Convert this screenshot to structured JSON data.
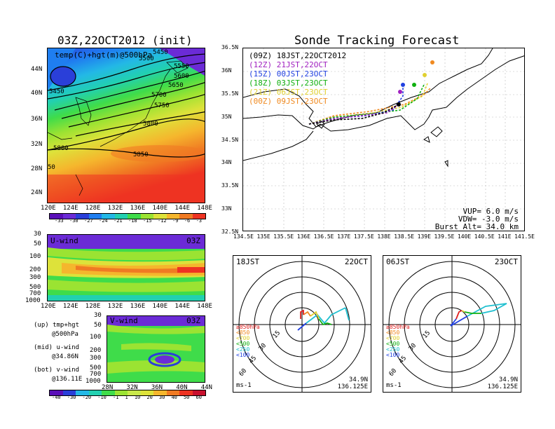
{
  "left_title": "03Z,22OCT2012 (init)",
  "right_title": "Sonde Tracking Forecast",
  "map500": {
    "overlay_label": "temp(C)+hgt(m)@500hPa",
    "lat_ticks": [
      "44N",
      "40N",
      "36N",
      "32N",
      "28N",
      "24N"
    ],
    "lon_ticks": [
      "120E",
      "124E",
      "128E",
      "132E",
      "136E",
      "140E",
      "144E",
      "148E"
    ],
    "contour_labels": [
      "5450",
      "5500",
      "5550",
      "5600",
      "5650",
      "5700",
      "5750",
      "5800",
      "5850",
      "5450",
      "5800",
      "50"
    ],
    "temp_colorbar": [
      "-33",
      "-30",
      "-27",
      "-24",
      "-21",
      "-18",
      "-15",
      "-12",
      "-9",
      "-6",
      "-3"
    ],
    "temp_colors": [
      "#5a0fb8",
      "#6b2bd6",
      "#2a3fd9",
      "#1f7ef0",
      "#23b8e6",
      "#22d0b0",
      "#3fdc4a",
      "#9be332",
      "#dde23a",
      "#f5b62d",
      "#f07a23",
      "#ee3322"
    ]
  },
  "uwind": {
    "label": "U-wind",
    "time": "03Z",
    "p_ticks": [
      "30",
      "50",
      "100",
      "200",
      "300",
      "500",
      "700",
      "1000"
    ],
    "lon_ticks": [
      "120E",
      "124E",
      "128E",
      "132E",
      "136E",
      "140E",
      "144E",
      "148E"
    ]
  },
  "vwind": {
    "label": "V-wind",
    "time": "03Z",
    "p_ticks": [
      "30",
      "50",
      "100",
      "200",
      "300",
      "500",
      "700",
      "1000"
    ],
    "lat_ticks": [
      "28N",
      "32N",
      "36N",
      "40N",
      "44N"
    ]
  },
  "legend_notes": [
    {
      "a": "(up)  tmp+hgt",
      "b": "@500hPa"
    },
    {
      "a": "(mid) u-wind",
      "b": "@34.86N"
    },
    {
      "a": "(bot) v-wind",
      "b": "@136.11E"
    }
  ],
  "wind_colorbar": [
    "-40",
    "-30",
    "-20",
    "-10",
    "-1",
    "1",
    "10",
    "20",
    "30",
    "40",
    "50",
    "60"
  ],
  "wind_colors": [
    "#5a0fb8",
    "#2a3fd9",
    "#23b8e6",
    "#22d0b0",
    "#3fdc4a",
    "#9be332",
    "#c9e84a",
    "#dde23a",
    "#f5b62d",
    "#f07a23",
    "#ee3322",
    "#c8102e"
  ],
  "track": {
    "lat_ticks": [
      "36.5N",
      "36N",
      "35.5N",
      "35N",
      "34.5N",
      "34N",
      "33.5N",
      "33N",
      "32.5N"
    ],
    "lon_ticks": [
      "134.5E",
      "135E",
      "135.5E",
      "136E",
      "136.5E",
      "137E",
      "137.5E",
      "138E",
      "138.5E",
      "139E",
      "139.5E",
      "140E",
      "140.5E",
      "141E",
      "141.5E"
    ],
    "legend": [
      {
        "text": "(09Z) 18JST,22OCT2012",
        "color": "#000000"
      },
      {
        "text": "(12Z) 21JST,22OCT",
        "color": "#a020c0"
      },
      {
        "text": "(15Z) 00JST,23OCT",
        "color": "#1f3fe0"
      },
      {
        "text": "(18Z) 03JST,23OCT",
        "color": "#10b010"
      },
      {
        "text": "(21Z) 06JST,23OCT",
        "color": "#e0d030"
      },
      {
        "text": "(00Z) 09JST,23OCT",
        "color": "#f08a20"
      }
    ],
    "params": [
      "VUP= 6.0 m/s",
      "VDW= -3.0 m/s",
      "Burst Alt= 34.0 km"
    ]
  },
  "hodo_left": {
    "time": "18JST",
    "date": "22OCT",
    "lat": "34.9N",
    "lon": "136.125E",
    "unit": "ms-1",
    "rings": [
      "15",
      "30",
      "45",
      "60"
    ]
  },
  "hodo_right": {
    "time": "06JST",
    "date": "23OCT",
    "lat": "34.9N",
    "lon": "136.125E",
    "unit": "ms-1",
    "rings": [
      "15",
      "30",
      "45",
      "60"
    ]
  },
  "hodo_legend": [
    {
      "text": "≥850hPa",
      "color": "#e02020"
    },
    {
      "text": "<850",
      "color": "#f08a20"
    },
    {
      "text": "<700",
      "color": "#e0d030"
    },
    {
      "text": "<500",
      "color": "#10b010"
    },
    {
      "text": "<250",
      "color": "#20c0d0"
    },
    {
      "text": "<100",
      "color": "#1f3fe0"
    }
  ]
}
